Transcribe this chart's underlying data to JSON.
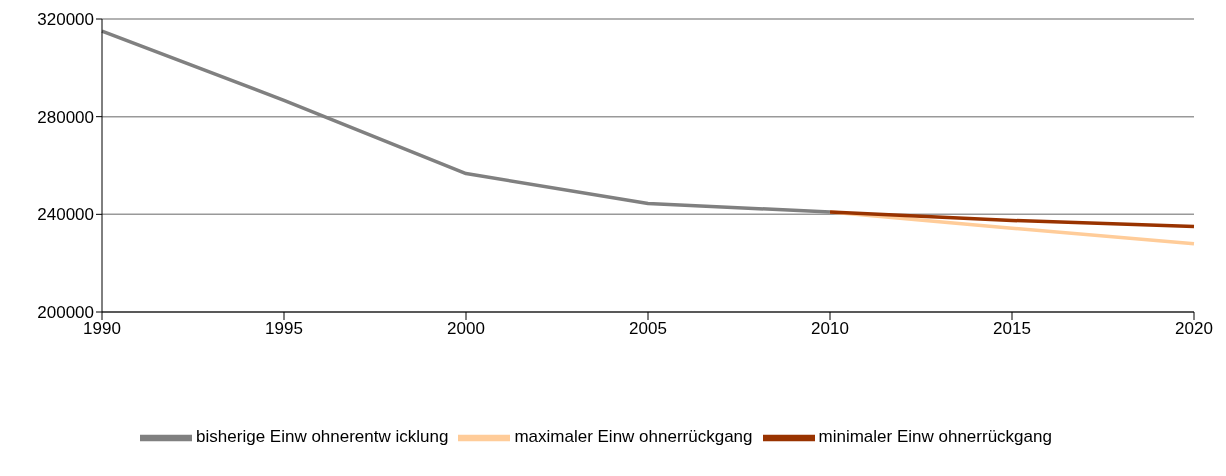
{
  "chart_data": {
    "type": "line",
    "categories": [
      "1990",
      "1995",
      "2000",
      "2005",
      "2010",
      "2015",
      "2020"
    ],
    "series": [
      {
        "name": "bisherige Einw ohnerentw icklung",
        "color": "#808080",
        "values": [
          315000,
          286700,
          256700,
          244400,
          241000,
          null,
          null
        ]
      },
      {
        "name": "maximaler Einw ohnerrückgang",
        "color": "#ffcc99",
        "values": [
          null,
          null,
          null,
          null,
          241000,
          234300,
          228000
        ]
      },
      {
        "name": "minimaler Einw ohnerrückgang",
        "color": "#993300",
        "values": [
          null,
          null,
          null,
          null,
          241000,
          237500,
          235000
        ]
      }
    ],
    "ylim": [
      200000,
      320000
    ],
    "yticks": [
      200000,
      240000,
      280000,
      320000
    ],
    "grid": "y",
    "legend": "bottom",
    "marker": "none",
    "line_style": "solid"
  }
}
